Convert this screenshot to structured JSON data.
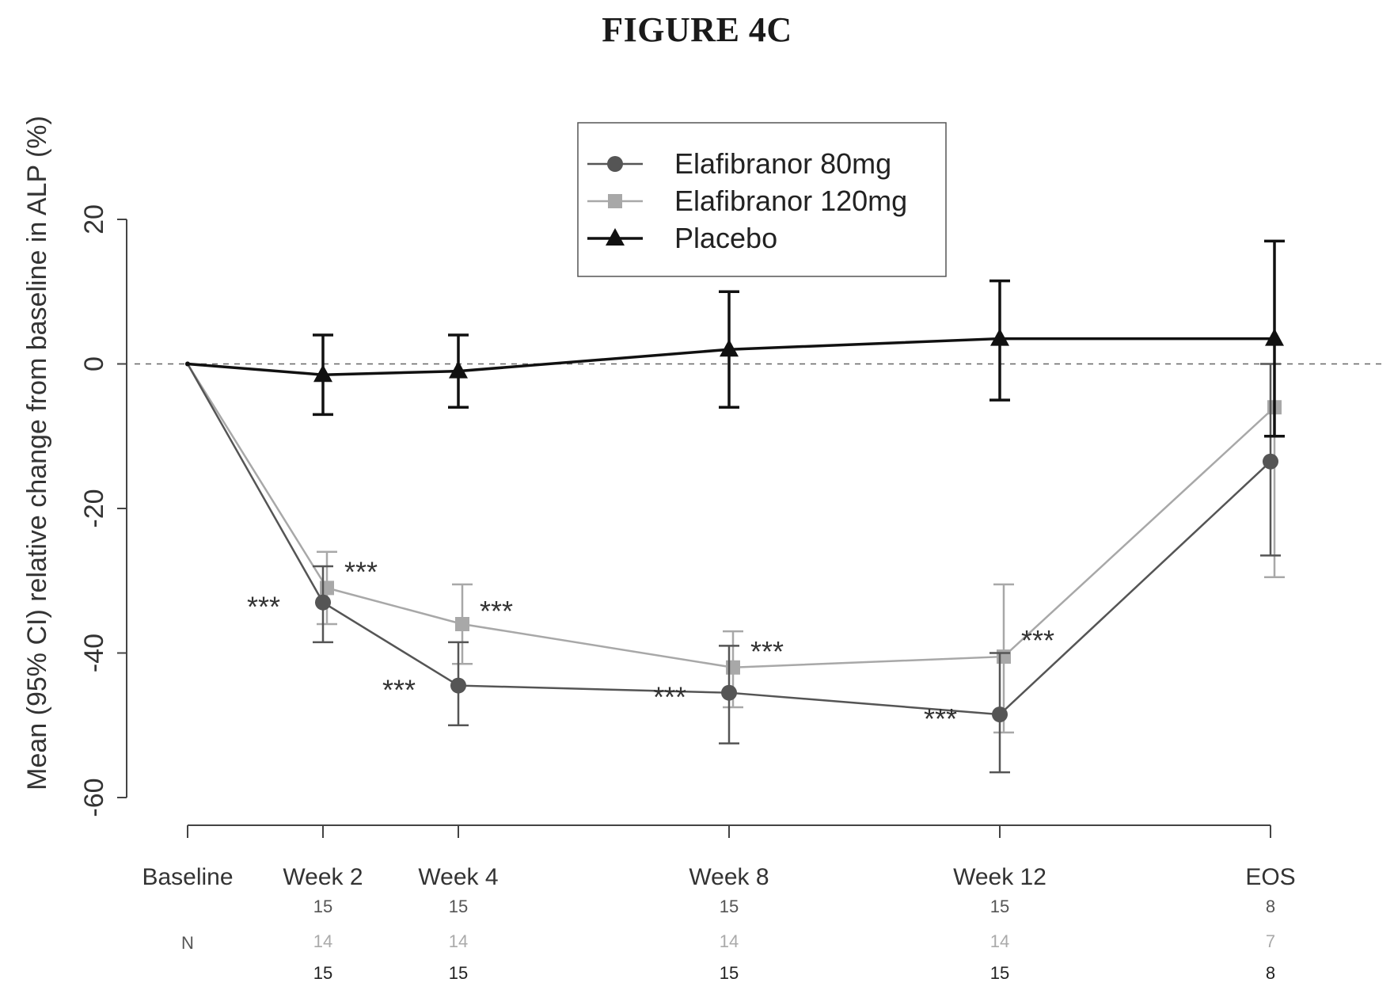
{
  "figure_title": "FIGURE 4C",
  "colors": {
    "elafibranor_80mg": "#555555",
    "elafibranor_120mg": "#a8a8a8",
    "placebo": "#111111",
    "axis": "#444444",
    "reference_line": "#666666"
  },
  "chart_data": {
    "type": "line",
    "title": "",
    "ylabel": "Mean (95% CI) relative change from baseline in ALP (%)",
    "xlabel": "",
    "ylim": [
      -60,
      20
    ],
    "y_ticks": [
      20,
      0,
      -20,
      -40,
      -60
    ],
    "y_tick_labels": [
      "20",
      "0",
      "-20",
      "-40",
      "-60"
    ],
    "reference_line_y": 0,
    "grid": false,
    "legend_position": "top-center",
    "categories": [
      "Baseline",
      "Week 2",
      "Week 4",
      "Week 8",
      "Week 12",
      "EOS"
    ],
    "x_positions_weeks": [
      0,
      2,
      4,
      8,
      12,
      16
    ],
    "series": [
      {
        "name": "Elafibranor 80mg",
        "marker": "circle",
        "color_key": "elafibranor_80mg",
        "values": [
          0,
          -33,
          -44.5,
          -45.5,
          -48.5,
          -13.5
        ],
        "ci_low": [
          null,
          -38.5,
          -50,
          -52.5,
          -56.5,
          -26.5
        ],
        "ci_high": [
          null,
          -28,
          -38.5,
          -39,
          -40,
          0
        ],
        "significance": [
          "",
          "***",
          "***",
          "***",
          "***",
          ""
        ],
        "n": [
          "",
          "15",
          "15",
          "15",
          "15",
          "8"
        ]
      },
      {
        "name": "Elafibranor 120mg",
        "marker": "square",
        "color_key": "elafibranor_120mg",
        "values": [
          0,
          -31,
          -36,
          -42,
          -40.5,
          -6
        ],
        "ci_low": [
          null,
          -36,
          -41.5,
          -47.5,
          -51,
          -29.5
        ],
        "ci_high": [
          null,
          -26,
          -30.5,
          -37,
          -30.5,
          17
        ],
        "significance": [
          "",
          "***",
          "***",
          "***",
          "***",
          ""
        ],
        "n": [
          "",
          "14",
          "14",
          "14",
          "14",
          "7"
        ]
      },
      {
        "name": "Placebo",
        "marker": "triangle",
        "color_key": "placebo",
        "values": [
          0,
          -1.5,
          -1,
          2,
          3.5,
          3.5
        ],
        "ci_low": [
          null,
          -7,
          -6,
          -6,
          -5,
          -10
        ],
        "ci_high": [
          null,
          4,
          4,
          10,
          11.5,
          17
        ],
        "significance": [
          "",
          "",
          "",
          "",
          "",
          ""
        ],
        "n": [
          "",
          "15",
          "15",
          "15",
          "15",
          "8"
        ]
      }
    ],
    "n_row_label": "N"
  }
}
